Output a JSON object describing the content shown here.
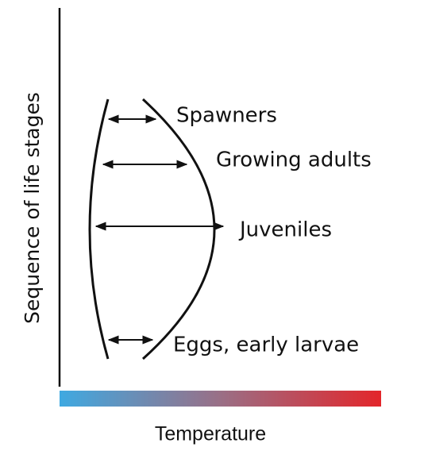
{
  "y_axis_label": "Sequence of life stages",
  "x_axis_label": "Temperature",
  "stages": [
    {
      "label": "Spawners"
    },
    {
      "label": "Growing adults"
    },
    {
      "label": "Juveniles"
    },
    {
      "label": "Eggs, early larvae"
    }
  ]
}
